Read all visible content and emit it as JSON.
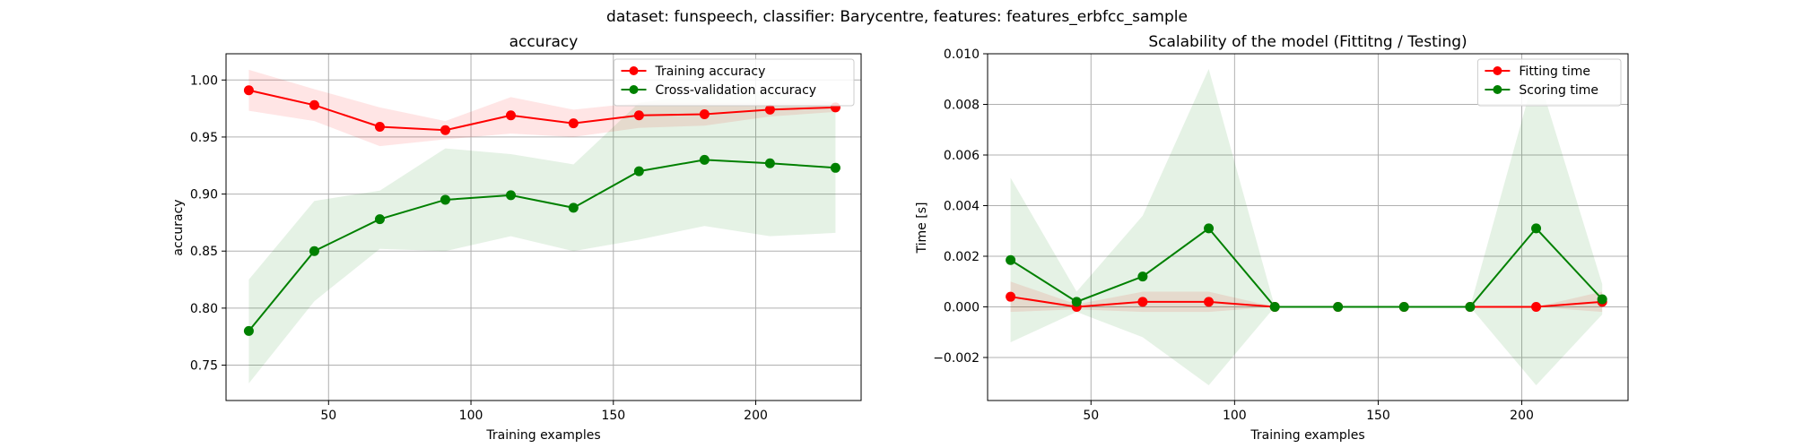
{
  "figure": {
    "suptitle": "dataset: funspeech, classifier: Barycentre, features: features_erbfcc_sample"
  },
  "colors": {
    "red": "#ff0000",
    "green": "#008000",
    "red_band": "#ff0000",
    "green_band": "#008000"
  },
  "chart_data": [
    {
      "type": "line",
      "title": "accuracy",
      "xlabel": "Training examples",
      "ylabel": "accuracy",
      "xlim": [
        14,
        237
      ],
      "ylim": [
        0.719,
        1.023
      ],
      "xticks": [
        50,
        100,
        150,
        200
      ],
      "yticks": [
        0.75,
        0.8,
        0.85,
        0.9,
        0.95,
        1.0
      ],
      "ytick_labels": [
        "0.75",
        "0.80",
        "0.85",
        "0.90",
        "0.95",
        "1.00"
      ],
      "grid": true,
      "legend_position": "top-right",
      "x": [
        22,
        45,
        68,
        91,
        114,
        136,
        159,
        182,
        205,
        228
      ],
      "series": [
        {
          "name": "Training accuracy",
          "color": "#ff0000",
          "values": [
            0.991,
            0.978,
            0.959,
            0.956,
            0.969,
            0.962,
            0.969,
            0.97,
            0.974,
            0.976
          ],
          "band_low": [
            0.973,
            0.964,
            0.942,
            0.948,
            0.953,
            0.95,
            0.958,
            0.96,
            0.968,
            0.972
          ],
          "band_high": [
            1.009,
            0.992,
            0.976,
            0.964,
            0.985,
            0.974,
            0.98,
            0.98,
            0.98,
            0.98
          ]
        },
        {
          "name": "Cross-validation accuracy",
          "color": "#008000",
          "values": [
            0.78,
            0.85,
            0.878,
            0.895,
            0.899,
            0.888,
            0.92,
            0.93,
            0.927,
            0.923
          ],
          "band_low": [
            0.734,
            0.806,
            0.852,
            0.85,
            0.863,
            0.85,
            0.86,
            0.872,
            0.863,
            0.866
          ],
          "band_high": [
            0.825,
            0.894,
            0.903,
            0.94,
            0.935,
            0.926,
            0.98,
            0.988,
            0.99,
            0.98
          ]
        }
      ]
    },
    {
      "type": "line",
      "title": "Scalability of the model (Fittitng / Testing)",
      "xlabel": "Training examples",
      "ylabel": "Time [s]",
      "xlim": [
        14,
        237
      ],
      "ylim": [
        -0.0037,
        0.01
      ],
      "xticks": [
        50,
        100,
        150,
        200
      ],
      "yticks": [
        -0.002,
        0.0,
        0.002,
        0.004,
        0.006,
        0.008,
        0.01
      ],
      "ytick_labels": [
        "−0.002",
        "0.000",
        "0.002",
        "0.004",
        "0.006",
        "0.008",
        "0.010"
      ],
      "grid": true,
      "legend_position": "top-right",
      "x": [
        22,
        45,
        68,
        91,
        114,
        136,
        159,
        182,
        205,
        228
      ],
      "series": [
        {
          "name": "Fitting time",
          "color": "#ff0000",
          "values": [
            0.0004,
            0.0,
            0.0002,
            0.0002,
            0.0,
            0.0,
            0.0,
            0.0,
            0.0,
            0.0002
          ],
          "band_low": [
            -0.0002,
            -0.0001,
            -0.0002,
            -0.0002,
            0.0,
            0.0,
            0.0,
            0.0,
            0.0,
            -0.0002
          ],
          "band_high": [
            0.001,
            0.0001,
            0.0006,
            0.0006,
            0.0,
            0.0,
            0.0,
            0.0,
            0.0,
            0.0006
          ]
        },
        {
          "name": "Scoring time",
          "color": "#008000",
          "values": [
            0.00185,
            0.0002,
            0.0012,
            0.0031,
            0.0,
            0.0,
            0.0,
            0.0,
            0.0031,
            0.0003
          ],
          "band_low": [
            -0.0014,
            -0.0002,
            -0.0012,
            -0.0031,
            0.0,
            0.0,
            0.0,
            0.0,
            -0.0031,
            -0.0003
          ],
          "band_high": [
            0.0051,
            0.0006,
            0.0036,
            0.0094,
            0.0,
            0.0,
            0.0,
            0.0,
            0.0094,
            0.0009
          ]
        }
      ]
    }
  ]
}
